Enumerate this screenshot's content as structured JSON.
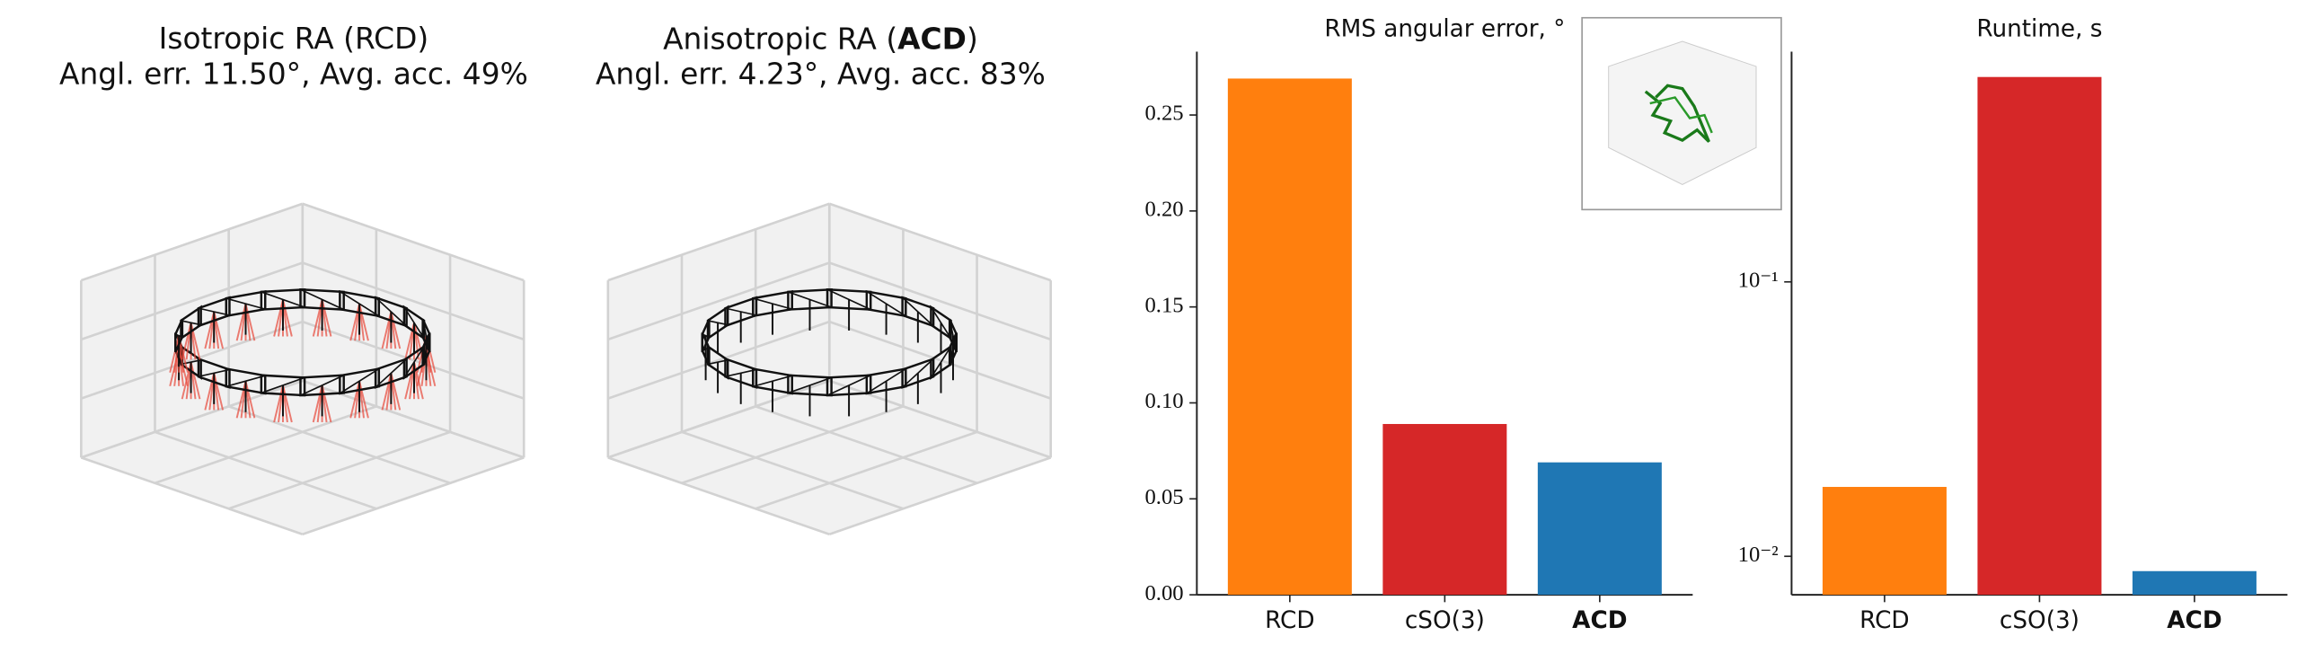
{
  "panels": [
    {
      "title": "Isotropic RA (RCD)",
      "subtitle": "Angl. err. 11.50°, Avg. acc.  49%"
    },
    {
      "title_parts": [
        "Anisotropic RA (",
        "ACD",
        ")"
      ],
      "subtitle": "Angl. err. 4.23°, Avg. acc.  83%"
    }
  ],
  "chart_data": [
    {
      "type": "bar",
      "title": "RMS angular error, °",
      "categories": [
        "RCD",
        "cSO(3)",
        "ACD"
      ],
      "bold": [
        false,
        false,
        true
      ],
      "values": [
        0.269,
        0.089,
        0.069
      ],
      "colors": [
        "#ff7f0e",
        "#d62728",
        "#1f77b4"
      ],
      "ylim": [
        0,
        0.283
      ],
      "yticks": [
        {
          "value": 0,
          "label": "0.00"
        },
        0.05,
        {
          "value": 0.1,
          "label": "0.10"
        },
        0.15,
        {
          "value": 0.2,
          "label": "0.20"
        },
        0.25
      ],
      "log": false
    },
    {
      "type": "bar",
      "title": "Runtime, s",
      "categories": [
        "RCD",
        "cSO(3)",
        "ACD"
      ],
      "bold": [
        false,
        false,
        true
      ],
      "values": [
        0.0179,
        0.558,
        0.00883
      ],
      "colors": [
        "#ff7f0e",
        "#d62728",
        "#1f77b4"
      ],
      "ylim": [
        0.00724,
        0.69
      ],
      "yticks": [
        {
          "value": 0.01,
          "label": "10⁻²"
        },
        {
          "value": 0.1,
          "label": "10⁻¹"
        }
      ],
      "log": true
    }
  ]
}
